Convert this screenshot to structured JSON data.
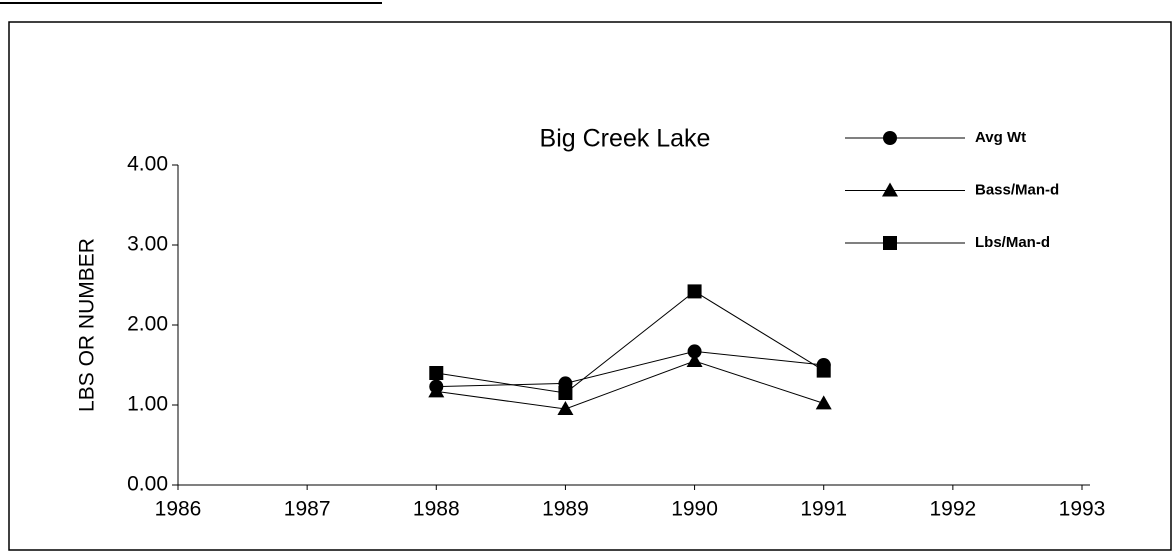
{
  "chart_data": {
    "type": "line",
    "title": "Big Creek Lake",
    "y_label": "LBS OR NUMBER",
    "x": [
      1988,
      1989,
      1990,
      1991
    ],
    "series": [
      {
        "name": "Avg Wt",
        "color": "#000000",
        "marker": "circle",
        "values": [
          1.23,
          1.27,
          1.67,
          1.5
        ]
      },
      {
        "name": "Bass/Man-d",
        "color": "#000000",
        "marker": "triangle",
        "values": [
          1.17,
          0.95,
          1.55,
          1.02
        ]
      },
      {
        "name": "Lbs/Man-d",
        "color": "#000000",
        "marker": "square",
        "values": [
          1.4,
          1.15,
          2.42,
          1.43
        ]
      }
    ],
    "xlim": [
      1986,
      1993
    ],
    "xticks": [
      1986,
      1987,
      1988,
      1989,
      1990,
      1991,
      1992,
      1993
    ],
    "ylim": [
      0,
      4
    ],
    "yticks": [
      {
        "value": 0,
        "label": "0.00"
      },
      {
        "value": 1,
        "label": "1.00"
      },
      {
        "value": 2,
        "label": "2.00"
      },
      {
        "value": 3,
        "label": "3.00"
      },
      {
        "value": 4,
        "label": "4.00"
      }
    ],
    "legend": "upper right"
  }
}
